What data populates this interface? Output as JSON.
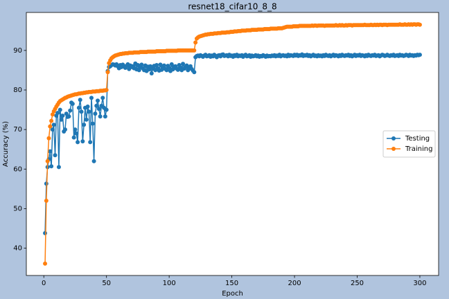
{
  "chart_data": {
    "type": "line",
    "title": "resnet18_cifar10_8_8",
    "x_label": "Epoch",
    "y_label": "Accuracy (%)",
    "xlim": [
      -13.95,
      314.95
    ],
    "xticks": [
      0,
      50,
      100,
      150,
      200,
      250,
      300
    ],
    "ylim": [
      33.1,
      99.6
    ],
    "yticks": [
      40,
      50,
      60,
      70,
      80,
      90
    ],
    "grid": false,
    "legend": "center right",
    "marker": "o",
    "x": [
      1,
      2,
      3,
      4,
      5,
      6,
      7,
      8,
      9,
      10,
      11,
      12,
      13,
      14,
      15,
      16,
      17,
      18,
      19,
      20,
      21,
      22,
      23,
      24,
      25,
      26,
      27,
      28,
      29,
      30,
      31,
      32,
      33,
      34,
      35,
      36,
      37,
      38,
      39,
      40,
      41,
      42,
      43,
      44,
      45,
      46,
      47,
      48,
      49,
      50,
      51,
      52,
      53,
      54,
      55,
      56,
      57,
      58,
      59,
      60,
      61,
      62,
      63,
      64,
      65,
      66,
      67,
      68,
      69,
      70,
      71,
      72,
      73,
      74,
      75,
      76,
      77,
      78,
      79,
      80,
      81,
      82,
      83,
      84,
      85,
      86,
      87,
      88,
      89,
      90,
      91,
      92,
      93,
      94,
      95,
      96,
      97,
      98,
      99,
      100,
      101,
      102,
      103,
      104,
      105,
      106,
      107,
      108,
      109,
      110,
      111,
      112,
      113,
      114,
      115,
      116,
      117,
      118,
      119,
      120,
      121,
      122,
      123,
      124,
      125,
      126,
      127,
      128,
      129,
      130,
      131,
      132,
      133,
      134,
      135,
      136,
      137,
      138,
      139,
      140,
      141,
      142,
      143,
      144,
      145,
      146,
      147,
      148,
      149,
      150,
      151,
      152,
      153,
      154,
      155,
      156,
      157,
      158,
      159,
      160,
      161,
      162,
      163,
      164,
      165,
      166,
      167,
      168,
      169,
      170,
      171,
      172,
      173,
      174,
      175,
      176,
      177,
      178,
      179,
      180,
      181,
      182,
      183,
      184,
      185,
      186,
      187,
      188,
      189,
      190,
      191,
      192,
      193,
      194,
      195,
      196,
      197,
      198,
      199,
      200,
      201,
      202,
      203,
      204,
      205,
      206,
      207,
      208,
      209,
      210,
      211,
      212,
      213,
      214,
      215,
      216,
      217,
      218,
      219,
      220,
      221,
      222,
      223,
      224,
      225,
      226,
      227,
      228,
      229,
      230,
      231,
      232,
      233,
      234,
      235,
      236,
      237,
      238,
      239,
      240,
      241,
      242,
      243,
      244,
      245,
      246,
      247,
      248,
      249,
      250,
      251,
      252,
      253,
      254,
      255,
      256,
      257,
      258,
      259,
      260,
      261,
      262,
      263,
      264,
      265,
      266,
      267,
      268,
      269,
      270,
      271,
      272,
      273,
      274,
      275,
      276,
      277,
      278,
      279,
      280,
      281,
      282,
      283,
      284,
      285,
      286,
      287,
      288,
      289,
      290,
      291,
      292,
      293,
      294,
      295,
      296,
      297,
      298,
      299,
      300
    ],
    "series": [
      {
        "name": "Testing",
        "color": "#1f77b4",
        "values": [
          43.8,
          56.3,
          60.5,
          62.5,
          64.5,
          60.7,
          70.0,
          71.2,
          63.5,
          73.5,
          74.2,
          60.5,
          75.0,
          72.5,
          73.5,
          69.5,
          70.0,
          74.0,
          73.2,
          73.3,
          74.8,
          76.8,
          76.5,
          68.0,
          70.0,
          69.0,
          66.8,
          75.5,
          77.5,
          74.5,
          67.0,
          71.2,
          75.5,
          72.5,
          75.8,
          74.5,
          66.8,
          78.0,
          71.5,
          62.0,
          74.0,
          76.0,
          77.3,
          75.2,
          73.3,
          76.0,
          78.0,
          75.5,
          73.3,
          75.0,
          84.8,
          85.8,
          86.0,
          86.3,
          86.5,
          86.4,
          86.2,
          86.5,
          86.0,
          85.5,
          86.3,
          85.8,
          86.4,
          86.0,
          85.6,
          86.1,
          86.5,
          85.3,
          86.2,
          85.8,
          86.0,
          85.5,
          86.7,
          85.2,
          86.3,
          85.0,
          85.8,
          86.4,
          85.5,
          85.0,
          86.2,
          84.8,
          85.9,
          85.2,
          86.0,
          84.2,
          85.4,
          86.1,
          85.0,
          86.3,
          85.5,
          84.9,
          86.4,
          85.1,
          85.8,
          86.2,
          85.3,
          85.0,
          86.1,
          85.6,
          84.8,
          86.5,
          85.2,
          85.9,
          86.0,
          85.4,
          85.1,
          86.3,
          85.7,
          85.0,
          86.6,
          85.4,
          85.8,
          86.2,
          85.0,
          85.6,
          86.0,
          85.3,
          84.9,
          84.5,
          88.3,
          88.6,
          88.7,
          88.5,
          88.8,
          88.6,
          88.4,
          88.7,
          88.9,
          88.5,
          88.6,
          88.8,
          88.4,
          88.7,
          88.5,
          88.9,
          88.6,
          88.3,
          88.7,
          88.8,
          88.5,
          88.9,
          89.0,
          88.6,
          88.7,
          88.8,
          88.5,
          88.9,
          88.6,
          88.7,
          88.4,
          88.8,
          88.6,
          88.9,
          88.5,
          88.7,
          88.6,
          88.8,
          88.4,
          88.7,
          88.9,
          88.5,
          88.6,
          88.8,
          88.4,
          88.7,
          88.5,
          88.6,
          88.8,
          88.5,
          88.7,
          88.4,
          88.6,
          88.5,
          88.8,
          88.6,
          88.4,
          88.7,
          88.5,
          88.6,
          88.5,
          88.7,
          88.6,
          88.8,
          88.5,
          88.7,
          88.6,
          88.9,
          88.5,
          88.7,
          88.8,
          88.6,
          88.7,
          88.5,
          88.9,
          88.6,
          88.8,
          88.7,
          88.6,
          88.9,
          88.7,
          88.9,
          88.6,
          88.8,
          88.7,
          89.0,
          88.6,
          88.8,
          88.7,
          88.9,
          88.6,
          88.8,
          88.5,
          88.7,
          88.9,
          88.6,
          88.7,
          88.5,
          88.8,
          88.6,
          88.7,
          88.5,
          88.8,
          88.6,
          88.9,
          88.7,
          88.6,
          88.8,
          88.5,
          88.7,
          88.9,
          88.6,
          88.8,
          88.7,
          88.5,
          88.8,
          88.6,
          88.9,
          88.7,
          88.6,
          88.8,
          88.7,
          88.9,
          88.6,
          88.8,
          88.5,
          88.7,
          88.9,
          88.6,
          88.8,
          88.7,
          88.9,
          88.6,
          88.8,
          88.7,
          88.5,
          88.8,
          88.6,
          88.9,
          88.7,
          88.6,
          88.8,
          88.7,
          88.9,
          88.6,
          88.7,
          88.8,
          88.5,
          88.7,
          88.9,
          88.8,
          88.6,
          88.7,
          88.9,
          88.7,
          88.6,
          88.8,
          88.7,
          88.9,
          88.6,
          88.7,
          88.8,
          88.6,
          88.9,
          88.7,
          88.8,
          88.6,
          88.7,
          88.9,
          88.8,
          88.6,
          88.9,
          88.7,
          88.8,
          88.6,
          88.8,
          88.7,
          88.9,
          88.8,
          88.9
        ]
      },
      {
        "name": "Training",
        "color": "#ff7f0e",
        "values": [
          36.1,
          52.0,
          62.0,
          67.8,
          70.8,
          72.2,
          73.8,
          74.6,
          75.2,
          75.8,
          76.3,
          76.8,
          77.2,
          77.4,
          77.6,
          77.8,
          78.0,
          78.1,
          78.3,
          78.4,
          78.5,
          78.6,
          78.7,
          78.8,
          78.9,
          78.9,
          79.0,
          79.1,
          79.1,
          79.2,
          79.2,
          79.3,
          79.3,
          79.4,
          79.4,
          79.5,
          79.5,
          79.5,
          79.6,
          79.6,
          79.6,
          79.7,
          79.7,
          79.7,
          79.8,
          79.8,
          79.8,
          79.9,
          79.9,
          80.0,
          84.5,
          86.8,
          87.5,
          88.0,
          88.3,
          88.5,
          88.7,
          88.8,
          88.9,
          89.0,
          89.1,
          89.1,
          89.2,
          89.2,
          89.3,
          89.3,
          89.3,
          89.4,
          89.4,
          89.4,
          89.4,
          89.5,
          89.5,
          89.5,
          89.5,
          89.5,
          89.6,
          89.6,
          89.6,
          89.6,
          89.6,
          89.6,
          89.7,
          89.7,
          89.7,
          89.7,
          89.7,
          89.7,
          89.7,
          89.8,
          89.8,
          89.8,
          89.8,
          89.8,
          89.8,
          89.8,
          89.8,
          89.9,
          89.9,
          89.9,
          89.9,
          89.9,
          89.9,
          89.9,
          89.9,
          89.9,
          90.0,
          90.0,
          90.0,
          90.0,
          90.0,
          90.0,
          90.0,
          90.0,
          90.0,
          90.0,
          90.0,
          90.0,
          90.0,
          90.0,
          92.0,
          93.0,
          93.3,
          93.5,
          93.6,
          93.7,
          93.8,
          93.9,
          94.0,
          94.0,
          94.1,
          94.1,
          94.2,
          94.2,
          94.2,
          94.3,
          94.3,
          94.3,
          94.4,
          94.4,
          94.4,
          94.5,
          94.5,
          94.5,
          94.5,
          94.6,
          94.6,
          94.6,
          94.7,
          94.7,
          94.7,
          94.8,
          94.8,
          94.8,
          94.9,
          94.9,
          94.9,
          95.0,
          95.0,
          95.0,
          95.0,
          95.1,
          95.1,
          95.1,
          95.1,
          95.2,
          95.2,
          95.2,
          95.2,
          95.2,
          95.3,
          95.3,
          95.3,
          95.3,
          95.3,
          95.4,
          95.4,
          95.4,
          95.4,
          95.4,
          95.5,
          95.5,
          95.5,
          95.5,
          95.5,
          95.5,
          95.6,
          95.6,
          95.6,
          95.6,
          95.7,
          95.8,
          95.9,
          96.0,
          96.0,
          96.0,
          96.0,
          96.0,
          96.1,
          96.1,
          96.1,
          96.1,
          96.1,
          96.2,
          96.2,
          96.2,
          96.2,
          96.2,
          96.2,
          96.2,
          96.2,
          96.2,
          96.2,
          96.3,
          96.2,
          96.3,
          96.3,
          96.2,
          96.3,
          96.3,
          96.3,
          96.3,
          96.3,
          96.2,
          96.3,
          96.3,
          96.3,
          96.3,
          96.3,
          96.3,
          96.3,
          96.3,
          96.4,
          96.3,
          96.3,
          96.4,
          96.3,
          96.4,
          96.3,
          96.3,
          96.4,
          96.3,
          96.4,
          96.4,
          96.4,
          96.3,
          96.4,
          96.4,
          96.4,
          96.4,
          96.4,
          96.4,
          96.4,
          96.4,
          96.4,
          96.5,
          96.4,
          96.4,
          96.4,
          96.4,
          96.5,
          96.4,
          96.4,
          96.5,
          96.4,
          96.5,
          96.4,
          96.5,
          96.5,
          96.4,
          96.5,
          96.5,
          96.5,
          96.4,
          96.5,
          96.5,
          96.5,
          96.5,
          96.5,
          96.5,
          96.5,
          96.5,
          96.5,
          96.6,
          96.5,
          96.5,
          96.5,
          96.6,
          96.5,
          96.5,
          96.6,
          96.5,
          96.6,
          96.5,
          96.6,
          96.6,
          96.5,
          96.6,
          96.6,
          96.5
        ]
      }
    ]
  }
}
